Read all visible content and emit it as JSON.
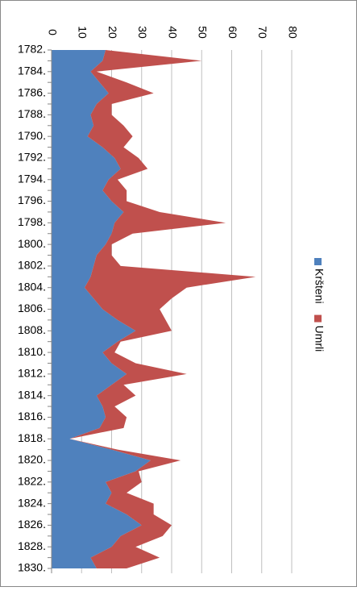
{
  "chart_data": {
    "type": "area",
    "stacked": true,
    "orientation": "horizontal",
    "categories": [
      "1782.",
      null,
      "1784.",
      null,
      "1786.",
      null,
      "1788.",
      null,
      "1790.",
      null,
      "1792.",
      null,
      "1794.",
      null,
      "1796.",
      null,
      "1798.",
      null,
      "1800.",
      null,
      "1802.",
      null,
      "1804.",
      null,
      "1806.",
      null,
      "1808.",
      null,
      "1810.",
      null,
      "1812.",
      null,
      "1814.",
      null,
      "1816.",
      null,
      "1818.",
      null,
      "1820.",
      null,
      "1822.",
      null,
      "1824.",
      null,
      "1826.",
      null,
      "1828.",
      null,
      "1830."
    ],
    "series": [
      {
        "name": "Kršteni",
        "color": "#4f81bd",
        "values": [
          18,
          17,
          13,
          16,
          19,
          15,
          13,
          14,
          12,
          17,
          21,
          23,
          19,
          17,
          20,
          24,
          21,
          20,
          18,
          15,
          14,
          13,
          11,
          14,
          17,
          22,
          28,
          22,
          17,
          20,
          25,
          20,
          15,
          17,
          18,
          16,
          6,
          20,
          33,
          28,
          18,
          20,
          18,
          25,
          30,
          23,
          20,
          13,
          15
        ]
      },
      {
        "name": "Umrli",
        "color": "#c0504d",
        "values": [
          0,
          33,
          2,
          9,
          15,
          5,
          7,
          10,
          15,
          7,
          8,
          9,
          3,
          8,
          5,
          12,
          37,
          7,
          2,
          5,
          9,
          55,
          34,
          26,
          19,
          16,
          12,
          1,
          4,
          8,
          20,
          4,
          13,
          4,
          7,
          8,
          0,
          2,
          10,
          1,
          12,
          5,
          16,
          9,
          10,
          14,
          8,
          23,
          10
        ]
      }
    ],
    "ylim": [
      0,
      80
    ],
    "yticks": [
      0,
      10,
      20,
      30,
      40,
      50,
      60,
      70,
      80
    ],
    "grid": true,
    "legend": "right"
  }
}
